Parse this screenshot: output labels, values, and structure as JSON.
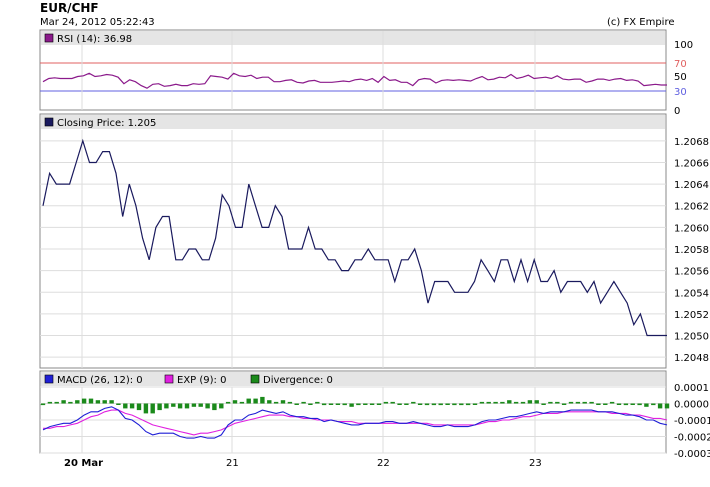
{
  "header": {
    "title": "EUR/CHF",
    "datetime": "Mar 24, 2012 05:22:43",
    "copyright": "(c) FX Empire"
  },
  "colors": {
    "price_line": "#1a1a5e",
    "rsi_line": "#8b1a8b",
    "rsi_upper": "#e06060",
    "rsi_lower": "#6060e0",
    "macd_line": "#1f1fd6",
    "exp_line": "#e020e0",
    "divergence_bar": "#1b8a1b",
    "panel_header": "#e5e5e5",
    "grid": "#dddddd"
  },
  "chart_data": [
    {
      "type": "line",
      "name": "rsi-panel",
      "legend": "RSI (14): 36.98",
      "ylim": [
        0,
        100
      ],
      "yticks": [
        "100",
        "50",
        "0"
      ],
      "levels": [
        {
          "value": 70,
          "label": "70"
        },
        {
          "value": 30,
          "label": "30"
        }
      ],
      "values": [
        42,
        47,
        48,
        47,
        47,
        47,
        50,
        51,
        55,
        50,
        51,
        53,
        52,
        49,
        39,
        45,
        42,
        36,
        32,
        38,
        39,
        35,
        36,
        38,
        36,
        36,
        39,
        38,
        39,
        51,
        50,
        49,
        46,
        55,
        51,
        50,
        52,
        47,
        49,
        49,
        42,
        42,
        44,
        45,
        41,
        40,
        43,
        44,
        41,
        41,
        41,
        42,
        43,
        42,
        45,
        46,
        44,
        47,
        41,
        50,
        44,
        45,
        41,
        41,
        36,
        45,
        47,
        46,
        40,
        44,
        45,
        44,
        45,
        44,
        43,
        47,
        50,
        45,
        46,
        49,
        48,
        53,
        47,
        49,
        52,
        47,
        48,
        49,
        47,
        51,
        46,
        45,
        46,
        46,
        41,
        43,
        46,
        46,
        44,
        46,
        47,
        44,
        45,
        43,
        36,
        37,
        38,
        37,
        37
      ]
    },
    {
      "type": "line",
      "name": "closing-price",
      "legend": "Closing Price: 1.205",
      "ylim": [
        1.2047,
        1.2069
      ],
      "yticks": [
        "1.2068",
        "1.2066",
        "1.2064",
        "1.2062",
        "1.2060",
        "1.2058",
        "1.2056",
        "1.2054",
        "1.2052",
        "1.2050",
        "1.2048"
      ],
      "values": [
        1.2062,
        1.2065,
        1.2064,
        1.2064,
        1.2064,
        1.2066,
        1.2068,
        1.2066,
        1.2066,
        1.2067,
        1.2067,
        1.2065,
        1.2061,
        1.2064,
        1.2062,
        1.2059,
        1.2057,
        1.206,
        1.2061,
        1.2061,
        1.2057,
        1.2057,
        1.2058,
        1.2058,
        1.2057,
        1.2057,
        1.2059,
        1.2063,
        1.2062,
        1.206,
        1.206,
        1.2064,
        1.2062,
        1.206,
        1.206,
        1.2062,
        1.2061,
        1.2058,
        1.2058,
        1.2058,
        1.206,
        1.2058,
        1.2058,
        1.2057,
        1.2057,
        1.2056,
        1.2056,
        1.2057,
        1.2057,
        1.2058,
        1.2057,
        1.2057,
        1.2057,
        1.2055,
        1.2057,
        1.2057,
        1.2058,
        1.2056,
        1.2053,
        1.2055,
        1.2055,
        1.2055,
        1.2054,
        1.2054,
        1.2054,
        1.2055,
        1.2057,
        1.2056,
        1.2055,
        1.2057,
        1.2057,
        1.2055,
        1.2057,
        1.2055,
        1.2057,
        1.2055,
        1.2055,
        1.2056,
        1.2054,
        1.2055,
        1.2055,
        1.2055,
        1.2054,
        1.2055,
        1.2053,
        1.2054,
        1.2055,
        1.2054,
        1.2053,
        1.2051,
        1.2052,
        1.205,
        1.205,
        1.205,
        1.205
      ]
    },
    {
      "type": "line",
      "name": "macd-panel",
      "legend": [
        {
          "key": "macd",
          "label": "MACD (26, 12): 0"
        },
        {
          "key": "exp",
          "label": "EXP (9): 0"
        },
        {
          "key": "divergence",
          "label": "Divergence: 0"
        }
      ],
      "ylim": [
        -0.0003,
        0.0001
      ],
      "yticks": [
        "0.0001",
        "0.0000",
        "-0.0001",
        "-0.0002",
        "-0.0003"
      ],
      "macd": [
        -0.00016,
        -0.00014,
        -0.00013,
        -0.00012,
        -0.00012,
        -0.0001,
        -7e-05,
        -5e-05,
        -5e-05,
        -3e-05,
        -2e-05,
        -4e-05,
        -9e-05,
        -0.0001,
        -0.00013,
        -0.00017,
        -0.00019,
        -0.00018,
        -0.00018,
        -0.00018,
        -0.0002,
        -0.00021,
        -0.00021,
        -0.0002,
        -0.00021,
        -0.00021,
        -0.00019,
        -0.00013,
        -0.0001,
        -0.0001,
        -7e-05,
        -6e-05,
        -4e-05,
        -5e-05,
        -6e-05,
        -5e-05,
        -7e-05,
        -8e-05,
        -8e-05,
        -9e-05,
        -9e-05,
        -0.00011,
        -0.0001,
        -0.00011,
        -0.00012,
        -0.00013,
        -0.00013,
        -0.00012,
        -0.00012,
        -0.00012,
        -0.00011,
        -0.00011,
        -0.00012,
        -0.00012,
        -0.00011,
        -0.00012,
        -0.00013,
        -0.00014,
        -0.00014,
        -0.00013,
        -0.00014,
        -0.00014,
        -0.00014,
        -0.00013,
        -0.00011,
        -0.0001,
        -0.0001,
        -9e-05,
        -8e-05,
        -8e-05,
        -7e-05,
        -6e-05,
        -5e-05,
        -6e-05,
        -5e-05,
        -5e-05,
        -5e-05,
        -4e-05,
        -4e-05,
        -4e-05,
        -4e-05,
        -5e-05,
        -5e-05,
        -5e-05,
        -6e-05,
        -7e-05,
        -7e-05,
        -8e-05,
        -0.0001,
        -0.0001,
        -0.00012,
        -0.00013
      ],
      "exp": [
        -0.00015,
        -0.00015,
        -0.00014,
        -0.00014,
        -0.00013,
        -0.00012,
        -0.0001,
        -8e-05,
        -7e-05,
        -5e-05,
        -4e-05,
        -4e-05,
        -6e-05,
        -7e-05,
        -9e-05,
        -0.00011,
        -0.00013,
        -0.00014,
        -0.00015,
        -0.00016,
        -0.00017,
        -0.00018,
        -0.00019,
        -0.00018,
        -0.00018,
        -0.00017,
        -0.00016,
        -0.00014,
        -0.00012,
        -0.00011,
        -0.0001,
        -9e-05,
        -8e-05,
        -7e-05,
        -7e-05,
        -7e-05,
        -8e-05,
        -8e-05,
        -9e-05,
        -9e-05,
        -0.0001,
        -0.0001,
        -0.0001,
        -0.00011,
        -0.00011,
        -0.00011,
        -0.00012,
        -0.00012,
        -0.00012,
        -0.00012,
        -0.00012,
        -0.00012,
        -0.00012,
        -0.00012,
        -0.00012,
        -0.00012,
        -0.00012,
        -0.00013,
        -0.00013,
        -0.00013,
        -0.00013,
        -0.00013,
        -0.00013,
        -0.00013,
        -0.00012,
        -0.00011,
        -0.00011,
        -0.0001,
        -0.0001,
        -9e-05,
        -8e-05,
        -8e-05,
        -7e-05,
        -6e-05,
        -6e-05,
        -6e-05,
        -5e-05,
        -5e-05,
        -5e-05,
        -5e-05,
        -5e-05,
        -5e-05,
        -5e-05,
        -6e-05,
        -6e-05,
        -6e-05,
        -7e-05,
        -7e-05,
        -8e-05,
        -9e-05,
        -9e-05,
        -0.0001
      ],
      "divergence": [
        -1e-05,
        1e-05,
        1e-05,
        2e-05,
        1e-05,
        2e-05,
        3e-05,
        3e-05,
        2e-05,
        2e-05,
        2e-05,
        0.0,
        -3e-05,
        -3e-05,
        -4e-05,
        -6e-05,
        -6e-05,
        -4e-05,
        -3e-05,
        -2e-05,
        -3e-05,
        -3e-05,
        -2e-05,
        -2e-05,
        -3e-05,
        -4e-05,
        -3e-05,
        1e-05,
        2e-05,
        1e-05,
        3e-05,
        3e-05,
        4e-05,
        2e-05,
        1e-05,
        2e-05,
        1e-05,
        0.0,
        1e-05,
        0.0,
        1e-05,
        -1e-05,
        0.0,
        0.0,
        -1e-05,
        -2e-05,
        -1e-05,
        0.0,
        0.0,
        0.0,
        1e-05,
        1e-05,
        0.0,
        0.0,
        1e-05,
        0.0,
        -1e-05,
        -1e-05,
        -1e-05,
        0.0,
        -1e-05,
        -1e-05,
        -1e-05,
        0.0,
        1e-05,
        1e-05,
        1e-05,
        1e-05,
        2e-05,
        1e-05,
        1e-05,
        2e-05,
        2e-05,
        0.0,
        1e-05,
        1e-05,
        0.0,
        1e-05,
        1e-05,
        1e-05,
        1e-05,
        0.0,
        0.0,
        1e-05,
        0.0,
        -1e-05,
        0.0,
        -1e-05,
        -2e-05,
        -1e-05,
        -3e-05,
        -3e-05
      ]
    }
  ],
  "xaxis": {
    "labels": [
      {
        "text": "20 Mar",
        "bold": true
      },
      {
        "text": "21",
        "bold": false
      },
      {
        "text": "22",
        "bold": false
      },
      {
        "text": "23",
        "bold": false
      }
    ]
  }
}
